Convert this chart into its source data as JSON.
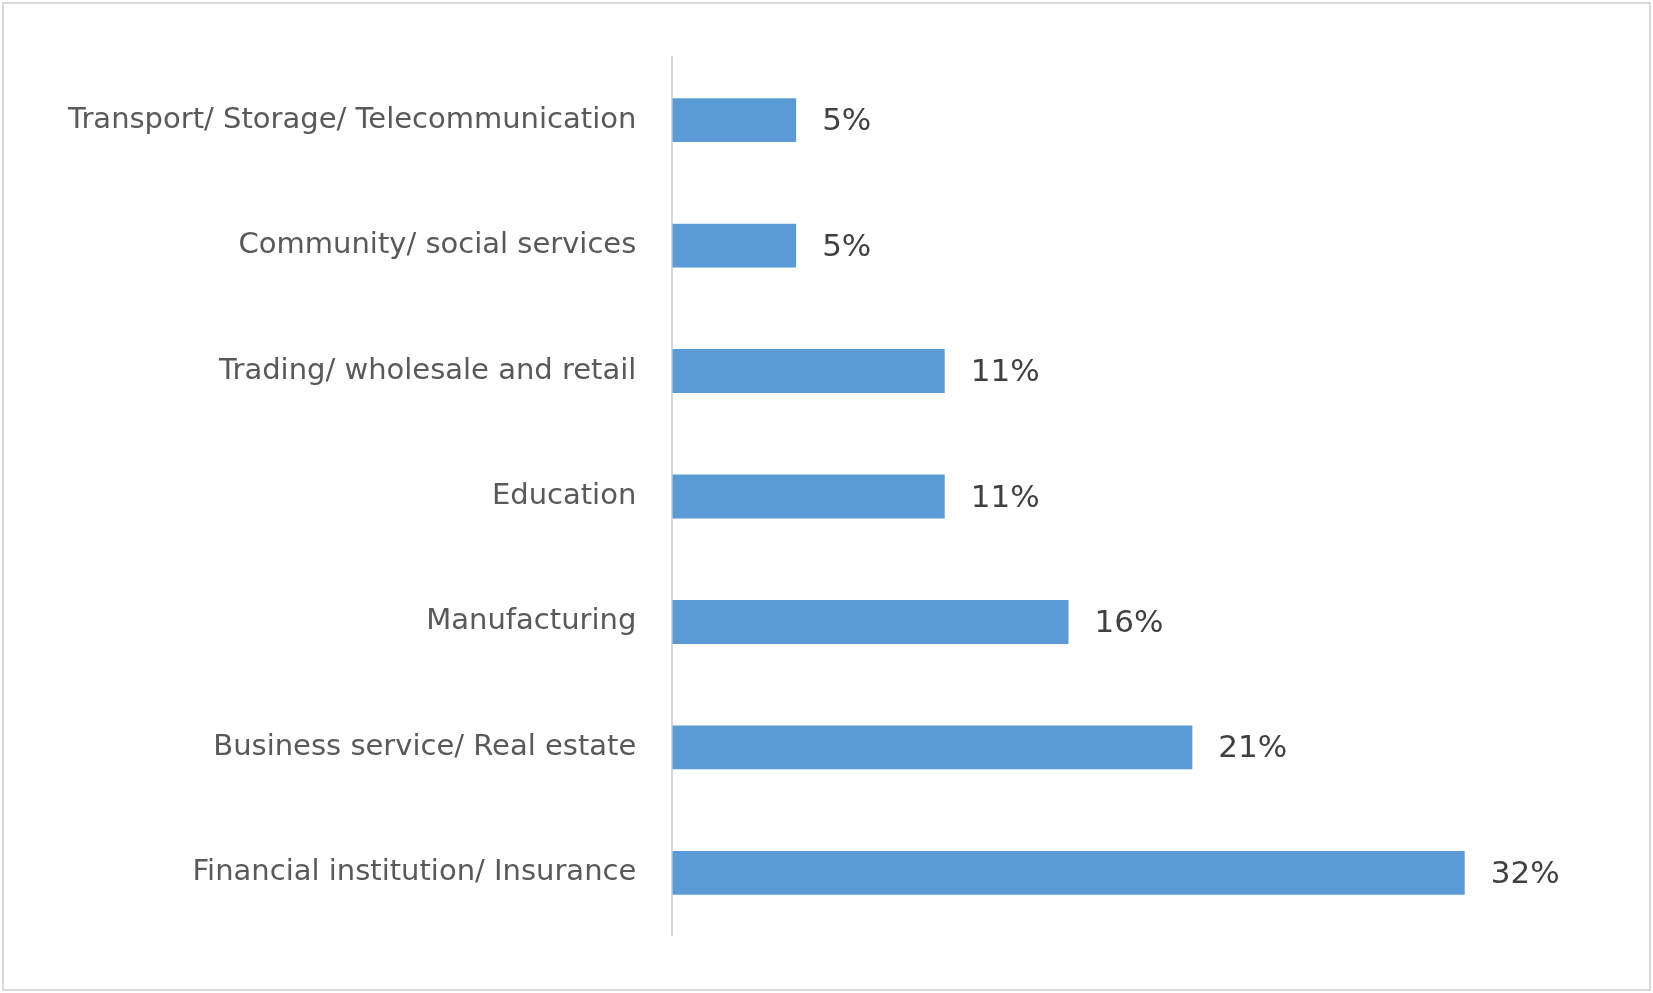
{
  "chart_data": {
    "type": "bar",
    "orientation": "horizontal",
    "categories": [
      "Transport/ Storage/ Telecommunication",
      "Community/ social services",
      "Trading/ wholesale and retail",
      "Education",
      "Manufacturing",
      "Business service/ Real estate",
      "Financial institution/ Insurance"
    ],
    "values": [
      5,
      5,
      11,
      11,
      16,
      21,
      32
    ],
    "value_labels": [
      "5%",
      "5%",
      "11%",
      "11%",
      "16%",
      "21%",
      "32%"
    ],
    "color": "#5b9bd5",
    "tick_labels": "y",
    "legend": false
  }
}
